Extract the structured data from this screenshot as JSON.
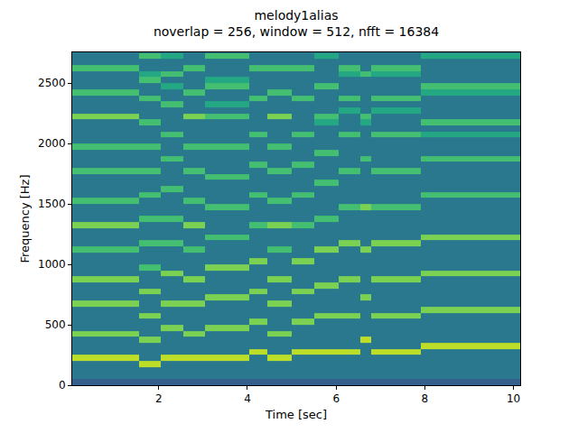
{
  "chart_data": {
    "type": "heatmap",
    "title": "melody1alias",
    "subtitle": "noverlap = 256, window = 512, nfft = 16384",
    "x_label": "Time [sec]",
    "y_label": "Frequency [Hz]",
    "xlim": [
      0.05,
      10.15
    ],
    "ylim": [
      0,
      2756
    ],
    "xticks": [
      2,
      4,
      6,
      8,
      10
    ],
    "yticks": [
      0,
      500,
      1000,
      1500,
      2000,
      2500
    ],
    "grid": false,
    "color": "viridis",
    "color_range": [
      0,
      10
    ],
    "time_edges": [
      0.05,
      0.55,
      1.0,
      1.55,
      2.05,
      2.55,
      3.05,
      3.55,
      4.05,
      4.45,
      5.0,
      5.5,
      6.05,
      6.55,
      6.8,
      7.9,
      8.2,
      10.15
    ],
    "freq_edges": [
      0,
      50,
      100,
      150,
      200,
      250,
      300,
      350,
      400,
      450,
      500,
      550,
      600,
      650,
      700,
      750,
      800,
      850,
      900,
      950,
      1000,
      1050,
      1100,
      1150,
      1200,
      1250,
      1300,
      1350,
      1400,
      1450,
      1500,
      1550,
      1600,
      1650,
      1700,
      1750,
      1800,
      1850,
      1900,
      1950,
      2000,
      2050,
      2100,
      2150,
      2200,
      2250,
      2300,
      2350,
      2400,
      2450,
      2500,
      2550,
      2600,
      2650,
      2700,
      2750,
      2800
    ],
    "cells": [
      [
        3,
        3,
        3,
        3,
        3,
        3,
        3,
        3,
        3,
        3,
        3,
        3,
        3,
        3,
        3,
        3,
        3
      ],
      [
        4,
        4,
        4,
        4,
        4,
        4,
        4,
        4,
        4,
        4,
        4,
        4,
        4,
        4,
        4,
        4,
        4
      ],
      [
        4,
        4,
        4,
        4,
        4,
        4,
        4,
        4,
        4,
        4,
        4,
        4,
        4,
        4,
        4,
        4,
        4
      ],
      [
        4,
        4,
        4,
        9,
        4,
        4,
        4,
        4,
        4,
        4,
        4,
        4,
        4,
        4,
        4,
        4,
        4
      ],
      [
        9,
        9,
        9,
        4,
        9,
        9,
        9,
        9,
        4,
        9,
        4,
        4,
        4,
        4,
        4,
        4,
        4
      ],
      [
        4,
        4,
        4,
        4,
        4,
        4,
        4,
        4,
        9,
        4,
        9,
        9,
        9,
        4,
        9,
        4,
        4
      ],
      [
        4,
        4,
        4,
        4,
        4,
        4,
        4,
        4,
        4,
        4,
        4,
        4,
        4,
        4,
        4,
        9,
        9
      ],
      [
        4,
        4,
        4,
        8,
        4,
        4,
        4,
        4,
        4,
        4,
        4,
        4,
        4,
        9,
        4,
        4,
        4
      ],
      [
        8,
        8,
        8,
        4,
        4,
        8,
        4,
        4,
        4,
        8,
        4,
        4,
        4,
        4,
        4,
        4,
        4
      ],
      [
        4,
        4,
        4,
        4,
        8,
        4,
        8,
        8,
        4,
        4,
        4,
        4,
        4,
        4,
        4,
        4,
        4
      ],
      [
        4,
        4,
        4,
        4,
        4,
        4,
        4,
        4,
        8,
        4,
        8,
        4,
        4,
        4,
        4,
        4,
        4
      ],
      [
        4,
        4,
        4,
        8,
        4,
        4,
        4,
        4,
        4,
        4,
        4,
        8,
        8,
        4,
        8,
        4,
        4
      ],
      [
        4,
        4,
        4,
        4,
        4,
        4,
        4,
        4,
        4,
        4,
        4,
        4,
        4,
        4,
        4,
        8,
        8
      ],
      [
        8,
        8,
        8,
        4,
        8,
        8,
        4,
        4,
        4,
        8,
        4,
        4,
        4,
        4,
        4,
        4,
        4
      ],
      [
        4,
        4,
        4,
        4,
        4,
        4,
        8,
        8,
        4,
        4,
        4,
        4,
        4,
        8,
        4,
        4,
        4
      ],
      [
        4,
        4,
        4,
        8,
        4,
        4,
        4,
        4,
        8,
        4,
        8,
        4,
        4,
        4,
        4,
        4,
        4
      ],
      [
        4,
        4,
        4,
        4,
        4,
        4,
        4,
        4,
        4,
        4,
        4,
        8,
        4,
        4,
        4,
        4,
        4
      ],
      [
        8,
        8,
        8,
        4,
        4,
        8,
        4,
        4,
        4,
        8,
        4,
        4,
        8,
        4,
        8,
        4,
        4
      ],
      [
        4,
        4,
        4,
        4,
        8,
        4,
        4,
        4,
        4,
        4,
        4,
        4,
        4,
        4,
        4,
        8,
        8
      ],
      [
        4,
        4,
        4,
        7,
        4,
        4,
        8,
        8,
        4,
        4,
        4,
        4,
        4,
        4,
        4,
        4,
        4
      ],
      [
        4,
        4,
        4,
        4,
        4,
        4,
        4,
        4,
        8,
        4,
        8,
        4,
        4,
        4,
        4,
        4,
        4
      ],
      [
        4,
        4,
        4,
        4,
        4,
        4,
        4,
        4,
        4,
        4,
        4,
        4,
        4,
        4,
        4,
        4,
        4
      ],
      [
        7,
        7,
        7,
        4,
        4,
        7,
        4,
        4,
        4,
        7,
        4,
        8,
        4,
        8,
        4,
        4,
        4
      ],
      [
        4,
        4,
        4,
        7,
        7,
        4,
        4,
        4,
        4,
        4,
        4,
        4,
        8,
        4,
        8,
        4,
        4
      ],
      [
        4,
        4,
        4,
        4,
        4,
        4,
        7,
        7,
        4,
        4,
        4,
        4,
        4,
        4,
        4,
        8,
        8
      ],
      [
        4,
        4,
        4,
        4,
        4,
        4,
        4,
        4,
        4,
        4,
        4,
        4,
        4,
        4,
        4,
        4,
        4
      ],
      [
        8,
        8,
        8,
        4,
        4,
        8,
        4,
        4,
        7,
        8,
        7,
        4,
        4,
        4,
        4,
        4,
        4
      ],
      [
        4,
        4,
        4,
        7,
        7,
        4,
        4,
        4,
        4,
        4,
        4,
        7,
        4,
        4,
        4,
        4,
        4
      ],
      [
        4,
        4,
        4,
        4,
        4,
        4,
        4,
        4,
        4,
        4,
        4,
        4,
        4,
        4,
        4,
        4,
        4
      ],
      [
        4,
        4,
        4,
        4,
        4,
        4,
        7,
        7,
        4,
        4,
        4,
        4,
        7,
        8,
        7,
        4,
        4
      ],
      [
        7,
        7,
        7,
        4,
        4,
        7,
        4,
        4,
        4,
        7,
        4,
        4,
        4,
        4,
        4,
        4,
        4
      ],
      [
        4,
        4,
        4,
        7,
        4,
        4,
        4,
        4,
        7,
        4,
        7,
        4,
        4,
        4,
        4,
        7,
        7
      ],
      [
        4,
        4,
        4,
        4,
        7,
        4,
        4,
        4,
        4,
        4,
        4,
        4,
        4,
        4,
        4,
        4,
        4
      ],
      [
        4,
        4,
        4,
        4,
        4,
        4,
        4,
        4,
        4,
        4,
        4,
        7,
        4,
        4,
        4,
        4,
        4
      ],
      [
        4,
        4,
        4,
        4,
        4,
        4,
        7,
        7,
        4,
        4,
        4,
        4,
        4,
        4,
        4,
        4,
        4
      ],
      [
        7,
        7,
        7,
        7,
        4,
        7,
        4,
        4,
        4,
        7,
        4,
        4,
        7,
        4,
        7,
        4,
        4
      ],
      [
        4,
        4,
        4,
        4,
        4,
        4,
        4,
        4,
        7,
        4,
        7,
        4,
        4,
        4,
        4,
        4,
        4
      ],
      [
        4,
        4,
        4,
        4,
        7,
        4,
        4,
        4,
        4,
        4,
        4,
        4,
        4,
        7,
        4,
        7,
        7
      ],
      [
        4,
        4,
        4,
        4,
        4,
        4,
        4,
        4,
        4,
        4,
        4,
        7,
        4,
        4,
        4,
        4,
        4
      ],
      [
        7,
        7,
        7,
        7,
        4,
        7,
        7,
        7,
        4,
        7,
        4,
        4,
        4,
        4,
        4,
        4,
        4
      ],
      [
        4,
        4,
        4,
        4,
        4,
        4,
        4,
        4,
        4,
        4,
        4,
        4,
        4,
        4,
        4,
        4,
        4
      ],
      [
        4,
        4,
        4,
        4,
        7,
        4,
        4,
        4,
        7,
        4,
        7,
        4,
        7,
        4,
        7,
        6,
        6
      ],
      [
        4,
        4,
        4,
        4,
        4,
        4,
        4,
        4,
        4,
        4,
        4,
        4,
        4,
        4,
        4,
        4,
        4
      ],
      [
        4,
        4,
        4,
        7,
        4,
        4,
        4,
        4,
        4,
        4,
        4,
        6,
        4,
        6,
        4,
        7,
        7
      ],
      [
        8,
        8,
        8,
        4,
        4,
        8,
        7,
        7,
        4,
        8,
        4,
        7,
        4,
        7,
        4,
        4,
        4
      ],
      [
        4,
        4,
        4,
        4,
        4,
        4,
        4,
        4,
        4,
        4,
        4,
        4,
        6,
        4,
        6,
        4,
        4
      ],
      [
        4,
        4,
        4,
        4,
        7,
        4,
        6,
        6,
        4,
        4,
        4,
        4,
        4,
        4,
        4,
        4,
        4
      ],
      [
        4,
        4,
        4,
        7,
        4,
        4,
        4,
        4,
        7,
        4,
        7,
        4,
        7,
        4,
        7,
        4,
        4
      ],
      [
        7,
        7,
        7,
        4,
        4,
        7,
        4,
        4,
        4,
        7,
        4,
        4,
        4,
        4,
        4,
        6,
        6
      ],
      [
        4,
        4,
        4,
        4,
        6,
        4,
        7,
        7,
        4,
        4,
        4,
        7,
        4,
        4,
        4,
        7,
        7
      ],
      [
        4,
        4,
        4,
        7,
        4,
        4,
        6,
        6,
        4,
        4,
        4,
        4,
        4,
        4,
        4,
        4,
        4
      ],
      [
        4,
        4,
        4,
        6,
        7,
        4,
        4,
        4,
        4,
        4,
        4,
        4,
        6,
        7,
        6,
        4,
        4
      ],
      [
        7,
        7,
        7,
        4,
        4,
        7,
        4,
        4,
        7,
        7,
        7,
        4,
        7,
        4,
        7,
        4,
        4
      ],
      [
        4,
        4,
        4,
        4,
        4,
        4,
        4,
        4,
        4,
        4,
        4,
        4,
        4,
        4,
        4,
        4,
        4
      ],
      [
        4,
        4,
        4,
        7,
        6,
        4,
        7,
        7,
        4,
        4,
        4,
        6,
        4,
        4,
        4,
        6,
        6
      ],
      [
        4,
        4,
        4,
        4,
        4,
        4,
        4,
        4,
        4,
        4,
        4,
        4,
        4,
        4,
        4,
        4,
        4
      ]
    ]
  }
}
